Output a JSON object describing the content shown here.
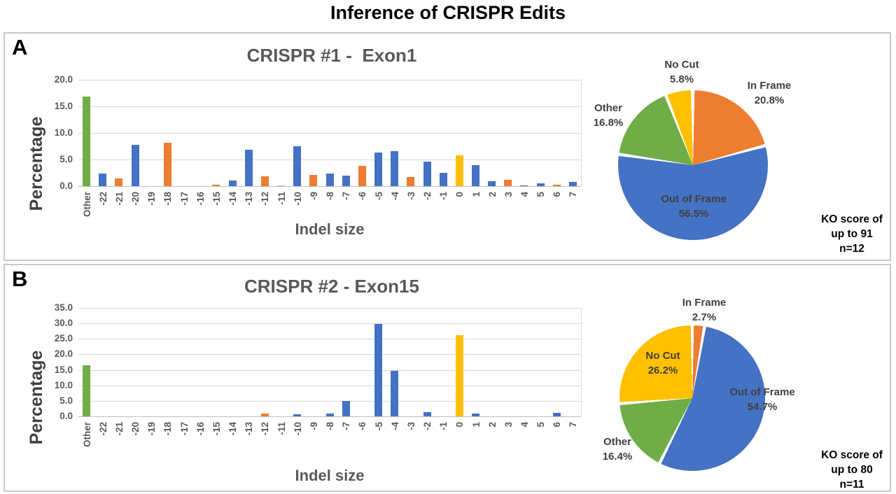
{
  "title": "Inference of CRISPR Edits",
  "palette": {
    "out_of_frame": "#4472C4",
    "in_frame": "#ED7D31",
    "no_cut": "#FFC000",
    "other": "#70AD47",
    "minor": "#BFBFBF",
    "axis_text": "#595959",
    "gridline": "#D9D9D9"
  },
  "panels": [
    {
      "label": "A",
      "bar_chart": 0,
      "pie_chart": 1,
      "ko_note": [
        "KO score of",
        "up to 91",
        "n=12"
      ]
    },
    {
      "label": "B",
      "bar_chart": 2,
      "pie_chart": 3,
      "ko_note": [
        "KO score of",
        "up to 80",
        "n=11"
      ]
    }
  ],
  "chart_data": [
    {
      "id": "bar-crispr1",
      "type": "bar",
      "title": "CRISPR #1 -  Exon1",
      "xlabel": "Indel size",
      "ylabel": "Percentage",
      "ylim": [
        0,
        20
      ],
      "grid": true,
      "ytick_labels": [
        "0.0",
        "5.0",
        "10.0",
        "15.0",
        "20.0"
      ],
      "categories": [
        "Other",
        "-22",
        "-21",
        "-20",
        "-19",
        "-18",
        "-17",
        "-16",
        "-15",
        "-14",
        "-13",
        "-12",
        "-11",
        "-10",
        "-9",
        "-8",
        "-7",
        "-6",
        "-5",
        "-4",
        "-3",
        "-2",
        "-1",
        "0",
        "1",
        "2",
        "3",
        "4",
        "5",
        "6",
        "7"
      ],
      "values": [
        16.8,
        2.4,
        1.5,
        7.8,
        0,
        8.1,
        0,
        0,
        0.3,
        1.1,
        6.9,
        1.8,
        0.2,
        7.5,
        2.1,
        2.4,
        2.0,
        3.8,
        6.3,
        6.6,
        1.7,
        4.6,
        2.5,
        5.8,
        4.0,
        0.9,
        1.2,
        0.2,
        0.5,
        0.3,
        0.8
      ],
      "bar_colors": [
        "#70AD47",
        "#4472C4",
        "#ED7D31",
        "#4472C4",
        "#4472C4",
        "#ED7D31",
        "#4472C4",
        "#4472C4",
        "#ED7D31",
        "#4472C4",
        "#4472C4",
        "#ED7D31",
        "#BFBFBF",
        "#4472C4",
        "#ED7D31",
        "#4472C4",
        "#4472C4",
        "#ED7D31",
        "#4472C4",
        "#4472C4",
        "#ED7D31",
        "#4472C4",
        "#4472C4",
        "#FFC000",
        "#4472C4",
        "#4472C4",
        "#ED7D31",
        "#4472C4",
        "#4472C4",
        "#ED7D31",
        "#4472C4"
      ]
    },
    {
      "id": "pie-crispr1",
      "type": "pie",
      "start_angle_deg": 0,
      "direction": "clockwise",
      "slices": [
        {
          "label": "In Frame",
          "value": 20.8,
          "color": "#ED7D31"
        },
        {
          "label": "Out of Frame",
          "value": 56.5,
          "color": "#4472C4"
        },
        {
          "label": "Other",
          "value": 16.8,
          "color": "#70AD47"
        },
        {
          "label": "No Cut",
          "value": 5.8,
          "color": "#FFC000"
        }
      ]
    },
    {
      "id": "bar-crispr2",
      "type": "bar",
      "title": "CRISPR #2 - Exon15",
      "xlabel": "Indel size",
      "ylabel": "Percentage",
      "ylim": [
        0,
        35
      ],
      "grid": true,
      "ytick_labels": [
        "0.0",
        "5.0",
        "10.0",
        "15.0",
        "20.0",
        "25.0",
        "30.0",
        "35.0"
      ],
      "categories": [
        "Other",
        "-22",
        "-21",
        "-20",
        "-19",
        "-18",
        "-17",
        "-16",
        "-15",
        "-14",
        "-13",
        "-12",
        "-11",
        "-10",
        "-9",
        "-8",
        "-7",
        "-6",
        "-5",
        "-4",
        "-3",
        "-2",
        "-1",
        "0",
        "1",
        "2",
        "3",
        "4",
        "5",
        "6",
        "7"
      ],
      "values": [
        16.4,
        0,
        0,
        0,
        0,
        0,
        0,
        0,
        0,
        0,
        0,
        1.0,
        0,
        0.7,
        0,
        1.0,
        4.9,
        0,
        29.9,
        14.8,
        0,
        1.4,
        0,
        26.2,
        0.9,
        0,
        0,
        0,
        0,
        1.1,
        0
      ],
      "bar_colors": [
        "#70AD47",
        "#4472C4",
        "#ED7D31",
        "#4472C4",
        "#4472C4",
        "#ED7D31",
        "#4472C4",
        "#4472C4",
        "#ED7D31",
        "#4472C4",
        "#4472C4",
        "#ED7D31",
        "#4472C4",
        "#4472C4",
        "#ED7D31",
        "#4472C4",
        "#4472C4",
        "#ED7D31",
        "#4472C4",
        "#4472C4",
        "#ED7D31",
        "#4472C4",
        "#4472C4",
        "#FFC000",
        "#4472C4",
        "#4472C4",
        "#ED7D31",
        "#4472C4",
        "#4472C4",
        "#4472C4",
        "#4472C4"
      ]
    },
    {
      "id": "pie-crispr2",
      "type": "pie",
      "start_angle_deg": 0,
      "direction": "clockwise",
      "slices": [
        {
          "label": "In Frame",
          "value": 2.7,
          "color": "#ED7D31"
        },
        {
          "label": "Out of Frame",
          "value": 54.7,
          "color": "#4472C4"
        },
        {
          "label": "Other",
          "value": 16.4,
          "color": "#70AD47"
        },
        {
          "label": "No Cut",
          "value": 26.2,
          "color": "#FFC000"
        }
      ]
    }
  ]
}
